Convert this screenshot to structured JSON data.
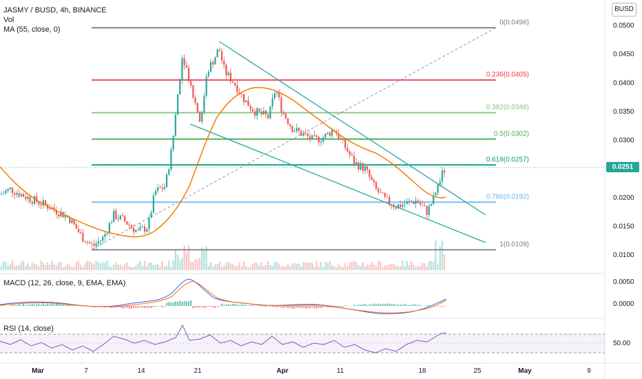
{
  "header": {
    "title": "JASMY / BUSD, 4h, BINANCE",
    "vol_label": "Vol",
    "ma_label": "MA (55, close, 0)",
    "currency": "BUSD"
  },
  "last_price": "0.0251",
  "price_axis": {
    "ticks": [
      "0.0500",
      "0.0450",
      "0.0400",
      "0.0350",
      "0.0300",
      "0.0250",
      "0.0200",
      "0.0150",
      "0.0100"
    ]
  },
  "fib_levels": [
    {
      "label": "0(0.0496)",
      "price": 0.0496,
      "color": "#787b86"
    },
    {
      "label": "0.236(0.0405)",
      "price": 0.0405,
      "color": "#f23645"
    },
    {
      "label": "0.382(0.0348)",
      "price": 0.0348,
      "color": "#81c784"
    },
    {
      "label": "0.5(0.0302)",
      "price": 0.0302,
      "color": "#4caf50"
    },
    {
      "label": "0.618(0.0257)",
      "price": 0.0257,
      "color": "#089981"
    },
    {
      "label": "0.786(0.0192)",
      "price": 0.0192,
      "color": "#64b5f6"
    },
    {
      "label": "1(0.0109)",
      "price": 0.0109,
      "color": "#787b86"
    }
  ],
  "macd": {
    "label": "MACD (12, 26, close, 9, EMA, EMA)",
    "ticks": [
      "0.0050",
      "0.0000"
    ]
  },
  "rsi": {
    "label": "RSI (14, close)",
    "ticks": [
      "50.00"
    ]
  },
  "time_axis": {
    "labels": [
      "Mar",
      "7",
      "14",
      "21",
      "Apr",
      "11",
      "18",
      "25",
      "May",
      "9"
    ]
  },
  "colors": {
    "up": "#26a69a",
    "down": "#ef5350",
    "ma": "#f57c00",
    "wedge": "#26a69a",
    "macd_line": "#2962ff",
    "signal_line": "#ff6d00",
    "rsi_line": "#7e57c2"
  }
}
